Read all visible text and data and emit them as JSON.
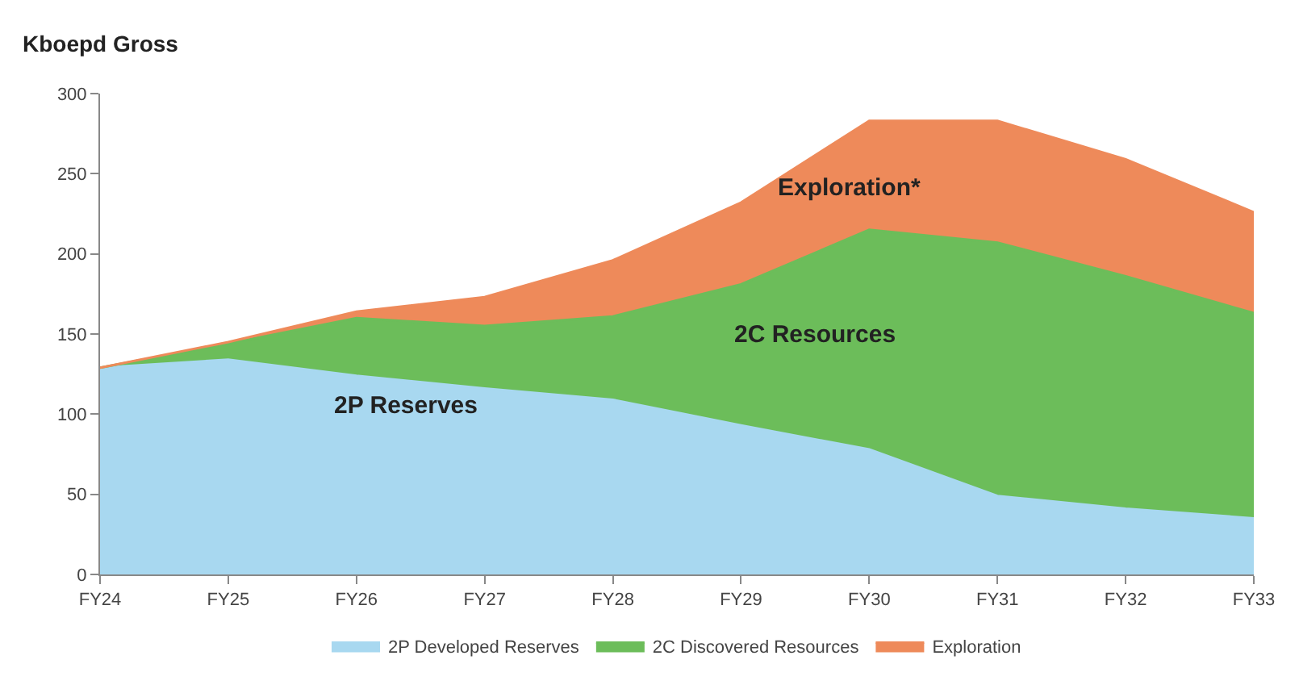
{
  "chart_data": {
    "type": "area",
    "stacked": true,
    "ylabel": "Kboepd Gross",
    "categories": [
      "FY24",
      "FY25",
      "FY26",
      "FY27",
      "FY28",
      "FY29",
      "FY30",
      "FY31",
      "FY32",
      "FY33"
    ],
    "series": [
      {
        "name": "2P Developed Reserves",
        "color": "#a8d8f0",
        "values": [
          129,
          134,
          124,
          116,
          109,
          93,
          78,
          49,
          41,
          35
        ]
      },
      {
        "name": "2C Discovered Resources",
        "color": "#6cbd5a",
        "values": [
          0,
          10,
          36,
          39,
          52,
          88,
          137,
          158,
          145,
          128
        ]
      },
      {
        "name": "Exploration",
        "color": "#ee8a5a",
        "values": [
          0,
          1,
          4,
          18,
          35,
          51,
          68,
          76,
          73,
          63
        ]
      }
    ],
    "ylim": [
      0,
      300
    ],
    "yticks": [
      0,
      50,
      100,
      150,
      200,
      250,
      300
    ],
    "legend": "bottom",
    "annotations": [
      "2P Reserves",
      "2C Resources",
      "Exploration*"
    ]
  }
}
